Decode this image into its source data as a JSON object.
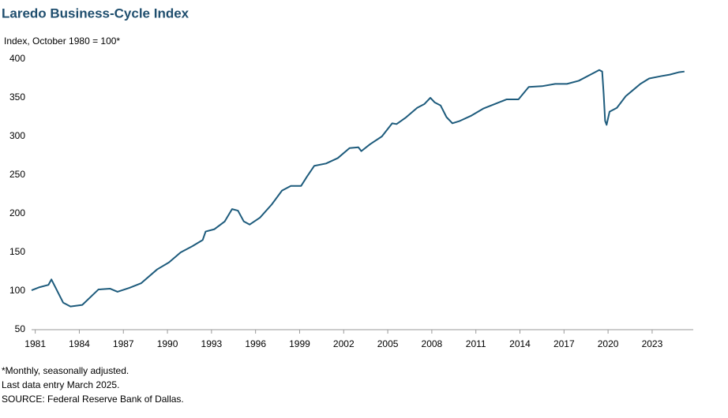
{
  "chart_data": {
    "type": "line",
    "title": "Laredo Business-Cycle Index",
    "y_label": "Index, October 1980 = 100*",
    "notes": [
      "*Monthly,  seasonally  adjusted.",
      "Last data entry March 2025.",
      "SOURCE: Federal Reserve Bank of Dallas."
    ],
    "x": [
      1980.75,
      1981.3,
      1981.9,
      1982.1,
      1982.9,
      1983.4,
      1984.2,
      1985.3,
      1986.1,
      1986.6,
      1987.4,
      1988.2,
      1989.3,
      1990.1,
      1990.9,
      1991.7,
      1992.4,
      1992.6,
      1993.2,
      1993.9,
      1994.4,
      1994.8,
      1995.2,
      1995.6,
      1996.3,
      1997.1,
      1997.8,
      1998.4,
      1999.1,
      1999.5,
      2000.0,
      2000.8,
      2001.6,
      2002.4,
      2003.0,
      2003.2,
      2003.8,
      2004.6,
      2005.3,
      2005.6,
      2006.2,
      2007.0,
      2007.5,
      2007.9,
      2008.2,
      2008.6,
      2009.0,
      2009.4,
      2009.9,
      2010.7,
      2011.5,
      2012.3,
      2013.1,
      2013.9,
      2014.6,
      2015.5,
      2016.4,
      2017.2,
      2018.0,
      2018.8,
      2019.4,
      2019.6,
      2019.7,
      2019.8,
      2019.9,
      2020.1,
      2020.6,
      2021.2,
      2021.7,
      2022.2,
      2022.8,
      2023.6,
      2024.2,
      2024.8,
      2025.2
    ],
    "values": [
      101,
      105,
      108,
      115,
      85,
      80,
      82,
      102,
      103,
      99,
      104,
      110,
      128,
      137,
      150,
      158,
      166,
      177,
      180,
      190,
      206,
      204,
      190,
      186,
      195,
      212,
      230,
      236,
      236,
      248,
      262,
      265,
      272,
      285,
      286,
      281,
      290,
      300,
      317,
      316,
      324,
      337,
      342,
      350,
      344,
      340,
      325,
      317,
      320,
      327,
      336,
      342,
      348,
      348,
      364,
      365,
      368,
      368,
      372,
      380,
      386,
      384,
      355,
      320,
      315,
      332,
      337,
      352,
      360,
      368,
      375,
      378,
      380,
      383,
      384
    ],
    "color": "#1d5b7c",
    "xlim": [
      1980.75,
      2025.8
    ],
    "xticks": [
      1981,
      1984,
      1987,
      1990,
      1993,
      1996,
      1999,
      2002,
      2005,
      2008,
      2011,
      2014,
      2017,
      2020,
      2023
    ],
    "ylim": [
      50,
      400
    ],
    "yticks": [
      50,
      100,
      150,
      200,
      250,
      300,
      350,
      400
    ],
    "grid": false
  }
}
